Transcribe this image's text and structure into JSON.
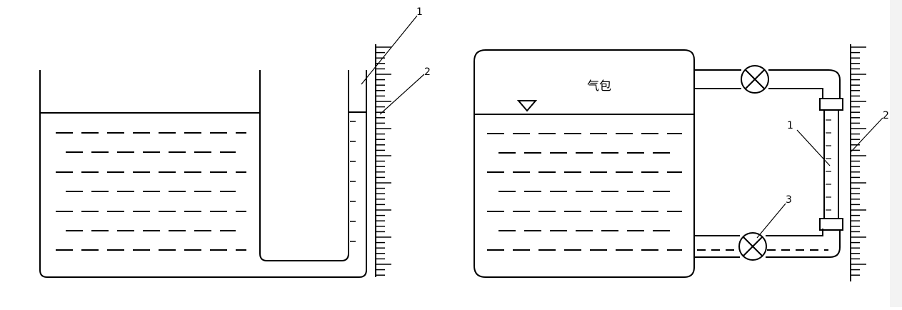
{
  "left_figure": {
    "callouts": [
      "1",
      "2"
    ]
  },
  "right_figure": {
    "drum_label": "气包",
    "callouts": [
      "1",
      "2",
      "3"
    ]
  },
  "colors": {
    "line": "#000000",
    "background": "#ffffff",
    "strip": "#f3f3f3"
  }
}
